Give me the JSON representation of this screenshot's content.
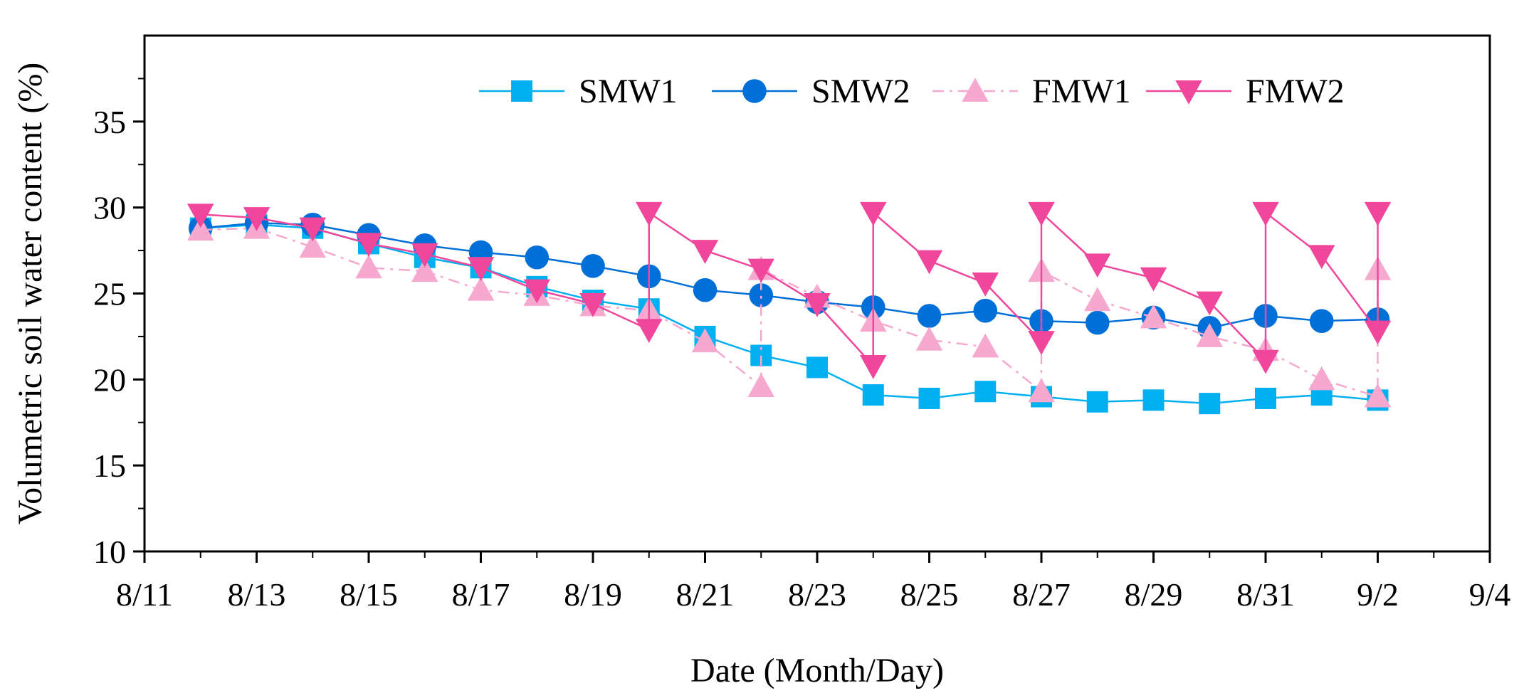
{
  "chart_data": {
    "type": "line",
    "title": "",
    "xlabel": "Date (Month/Day)",
    "ylabel": "Volumetric soil water content (%)",
    "xlim": [
      11,
      35
    ],
    "ylim": [
      10,
      40
    ],
    "yticks": [
      10,
      15,
      20,
      25,
      30,
      35
    ],
    "xticks": [
      {
        "v": 11,
        "label": "8/11"
      },
      {
        "v": 13,
        "label": "8/13"
      },
      {
        "v": 15,
        "label": "8/15"
      },
      {
        "v": 17,
        "label": "8/17"
      },
      {
        "v": 19,
        "label": "8/19"
      },
      {
        "v": 21,
        "label": "8/21"
      },
      {
        "v": 23,
        "label": "8/23"
      },
      {
        "v": 25,
        "label": "8/25"
      },
      {
        "v": 27,
        "label": "8/27"
      },
      {
        "v": 29,
        "label": "8/29"
      },
      {
        "v": 31,
        "label": "8/31"
      },
      {
        "v": 33,
        "label": "9/2"
      },
      {
        "v": 35,
        "label": "9/4"
      }
    ],
    "legend_position": "top-right",
    "series": [
      {
        "name": "SMW1",
        "color": "#00B0F0",
        "marker": "square",
        "dash": "",
        "x": [
          12,
          13,
          14,
          15,
          16,
          17,
          18,
          19,
          20,
          21,
          22,
          23,
          24,
          25,
          26,
          27,
          28,
          29,
          30,
          31,
          32,
          33
        ],
        "y": [
          28.8,
          29.0,
          28.8,
          27.9,
          27.1,
          26.5,
          25.4,
          24.6,
          24.1,
          22.5,
          21.4,
          20.7,
          19.1,
          18.9,
          19.3,
          19.0,
          18.7,
          18.8,
          18.6,
          18.9,
          19.1,
          18.8
        ]
      },
      {
        "name": "SMW2",
        "color": "#0070D8",
        "marker": "circle",
        "dash": "",
        "x": [
          12,
          13,
          14,
          15,
          16,
          17,
          18,
          19,
          20,
          21,
          22,
          23,
          24,
          25,
          26,
          27,
          28,
          29,
          30,
          31,
          32,
          33
        ],
        "y": [
          28.8,
          29.1,
          29.0,
          28.4,
          27.8,
          27.4,
          27.1,
          26.6,
          26.0,
          25.2,
          24.9,
          24.5,
          24.2,
          23.7,
          24.0,
          23.4,
          23.3,
          23.6,
          23.0,
          23.7,
          23.4,
          23.5
        ]
      },
      {
        "name": "FMW1",
        "color": "#F7A8CF",
        "marker": "triangle-up",
        "dash": "16,8,4,8",
        "x": [
          12,
          13,
          14,
          15,
          16,
          17,
          18,
          19,
          20,
          21,
          22,
          22,
          23,
          24,
          25,
          26,
          27,
          27,
          28,
          29,
          30,
          31,
          32,
          33,
          33
        ],
        "y": [
          28.7,
          28.8,
          27.7,
          26.5,
          26.3,
          25.2,
          24.9,
          24.3,
          24.0,
          22.2,
          19.6,
          26.4,
          24.8,
          23.4,
          22.3,
          21.9,
          19.3,
          26.3,
          24.6,
          23.6,
          22.5,
          21.7,
          20.0,
          19.0,
          26.4
        ]
      },
      {
        "name": "FMW2",
        "color": "#F0479C",
        "marker": "triangle-down",
        "dash": "",
        "x": [
          12,
          13,
          14,
          15,
          16,
          17,
          18,
          19,
          20,
          20,
          21,
          22,
          23,
          24,
          24,
          25,
          26,
          27,
          27,
          28,
          29,
          30,
          31,
          31,
          32,
          33,
          33
        ],
        "y": [
          29.6,
          29.4,
          28.8,
          27.9,
          27.3,
          26.5,
          25.2,
          24.4,
          22.9,
          29.7,
          27.5,
          26.4,
          24.4,
          20.8,
          29.7,
          26.9,
          25.6,
          22.2,
          29.7,
          26.7,
          25.9,
          24.5,
          21.1,
          29.7,
          27.2,
          22.8,
          29.7
        ]
      }
    ]
  }
}
